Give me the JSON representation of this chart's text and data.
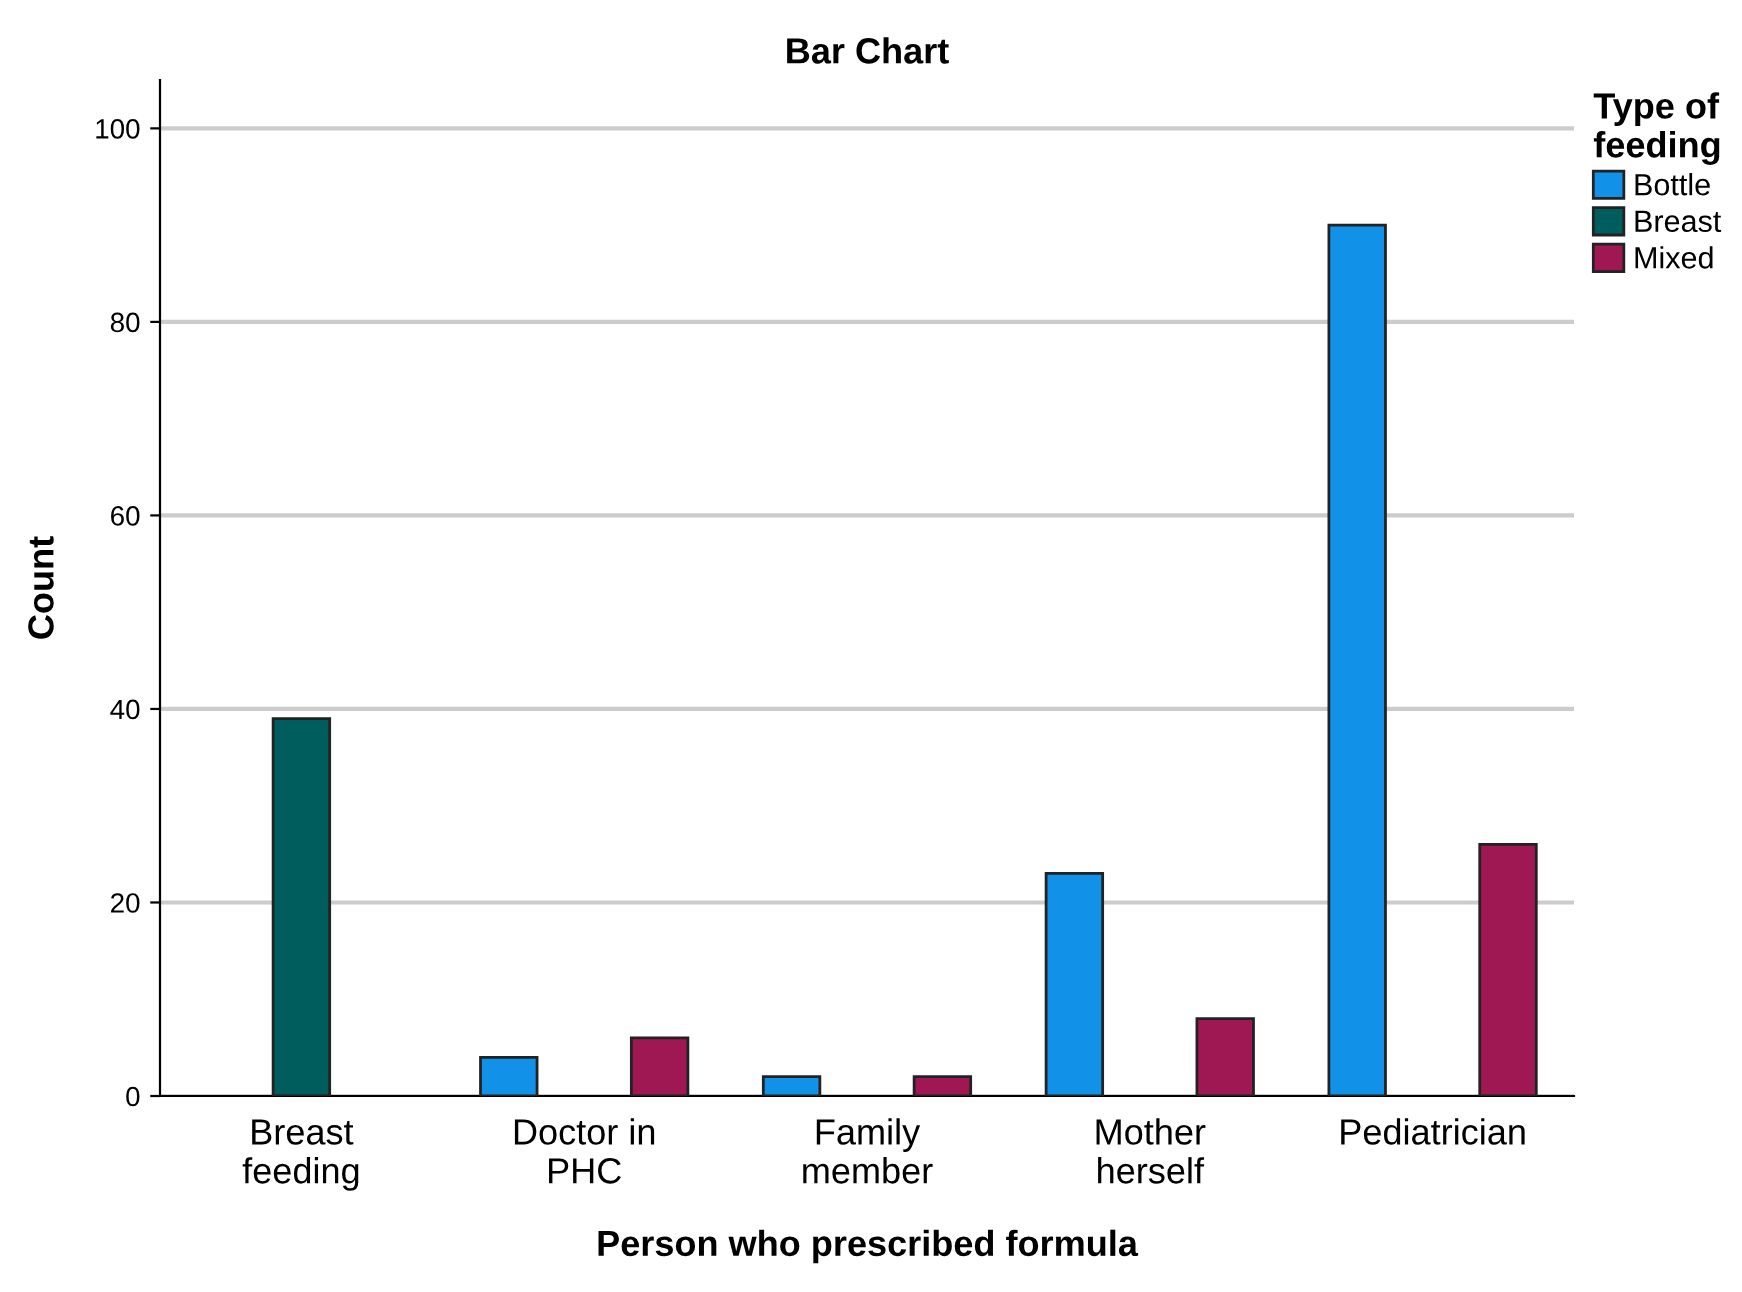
{
  "chart_data": {
    "type": "bar",
    "title": "Bar Chart",
    "xlabel": "Person who prescribed formula",
    "ylabel": "Count",
    "legend_title": "Type of\nfeeding",
    "categories": [
      "Breast\nfeeding",
      "Doctor in\nPHC",
      "Family\nmember",
      "Mother\nherself",
      "Pediatrician"
    ],
    "series": [
      {
        "name": "Bottle",
        "color": "#1192e8",
        "values": [
          null,
          4,
          2,
          23,
          90
        ]
      },
      {
        "name": "Breast",
        "color": "#005d5d",
        "values": [
          39,
          null,
          null,
          null,
          null
        ]
      },
      {
        "name": "Mixed",
        "color": "#9f1853",
        "values": [
          null,
          6,
          2,
          8,
          26
        ]
      }
    ],
    "ylim": [
      0,
      105
    ],
    "yticks": [
      0,
      20,
      40,
      60,
      80,
      100
    ],
    "grid": "y",
    "legend": "top right"
  }
}
